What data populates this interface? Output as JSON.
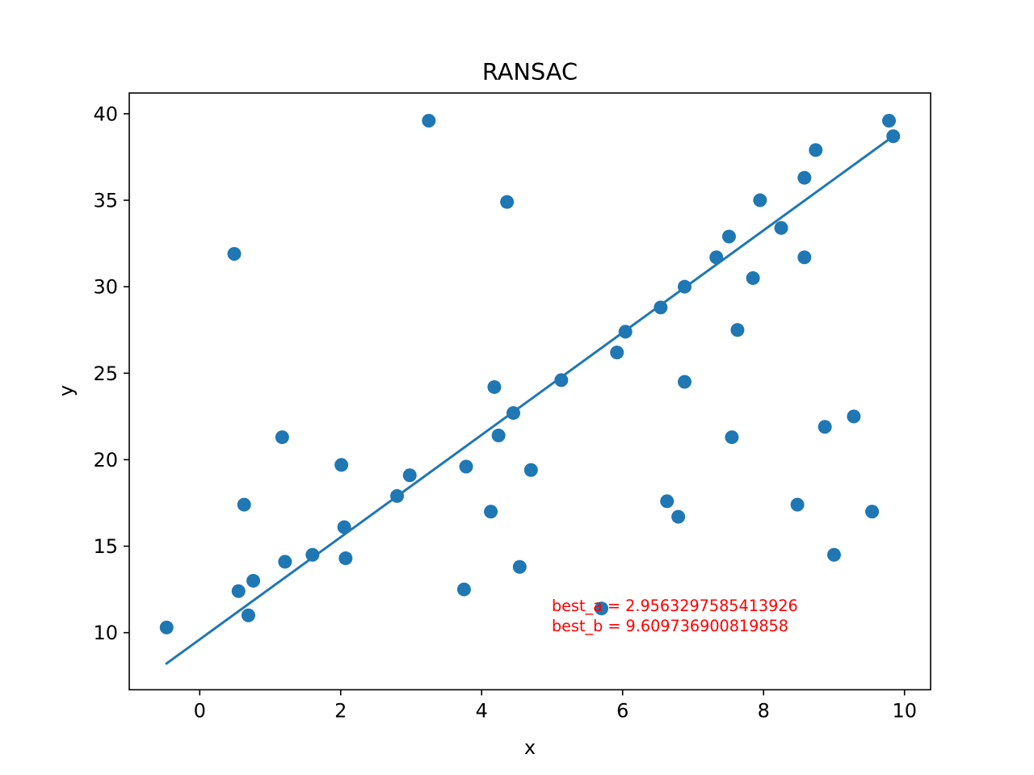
{
  "chart_data": {
    "type": "scatter",
    "title": "RANSAC",
    "xlabel": "x",
    "ylabel": "y",
    "xlim": [
      -1.0,
      10.37
    ],
    "ylim": [
      6.7,
      41.2
    ],
    "xticks": [
      "0",
      "2",
      "4",
      "6",
      "8",
      "10"
    ],
    "yticks": [
      "10",
      "15",
      "20",
      "25",
      "30",
      "35",
      "40"
    ],
    "grid": false,
    "legend": "none",
    "point_color": "#1f77b4",
    "line_color": "#1f77b4",
    "annotation_color": "#ff0000",
    "points": [
      [
        -0.47,
        10.3
      ],
      [
        0.49,
        31.9
      ],
      [
        0.55,
        12.4
      ],
      [
        0.63,
        17.4
      ],
      [
        0.69,
        11.0
      ],
      [
        0.76,
        13.0
      ],
      [
        1.17,
        21.3
      ],
      [
        1.21,
        14.1
      ],
      [
        1.6,
        14.5
      ],
      [
        2.01,
        19.7
      ],
      [
        2.05,
        16.1
      ],
      [
        2.07,
        14.3
      ],
      [
        2.8,
        17.9
      ],
      [
        2.98,
        19.1
      ],
      [
        3.25,
        39.6
      ],
      [
        3.75,
        12.5
      ],
      [
        3.78,
        19.6
      ],
      [
        4.13,
        17.0
      ],
      [
        4.18,
        24.2
      ],
      [
        4.24,
        21.4
      ],
      [
        4.36,
        34.9
      ],
      [
        4.45,
        22.7
      ],
      [
        4.54,
        13.8
      ],
      [
        4.7,
        19.4
      ],
      [
        5.13,
        24.6
      ],
      [
        5.7,
        11.4
      ],
      [
        5.92,
        26.2
      ],
      [
        6.04,
        27.4
      ],
      [
        6.54,
        28.8
      ],
      [
        6.63,
        17.6
      ],
      [
        6.79,
        16.7
      ],
      [
        6.88,
        30.0
      ],
      [
        6.88,
        24.5
      ],
      [
        7.33,
        31.7
      ],
      [
        7.51,
        32.9
      ],
      [
        7.55,
        21.3
      ],
      [
        7.63,
        27.5
      ],
      [
        7.85,
        30.5
      ],
      [
        7.95,
        35.0
      ],
      [
        8.25,
        33.4
      ],
      [
        8.48,
        17.4
      ],
      [
        8.58,
        36.3
      ],
      [
        8.58,
        31.7
      ],
      [
        8.74,
        37.9
      ],
      [
        8.87,
        21.9
      ],
      [
        9.0,
        14.5
      ],
      [
        9.28,
        22.5
      ],
      [
        9.54,
        17.0
      ],
      [
        9.78,
        39.6
      ],
      [
        9.84,
        38.7
      ]
    ],
    "fit_line": {
      "a": 2.9563297585413926,
      "b": 9.609736900819858,
      "x_range": [
        -0.47,
        9.84
      ]
    },
    "annotations": [
      "best_a = 2.9563297585413926",
      "best_b = 9.609736900819858"
    ]
  }
}
